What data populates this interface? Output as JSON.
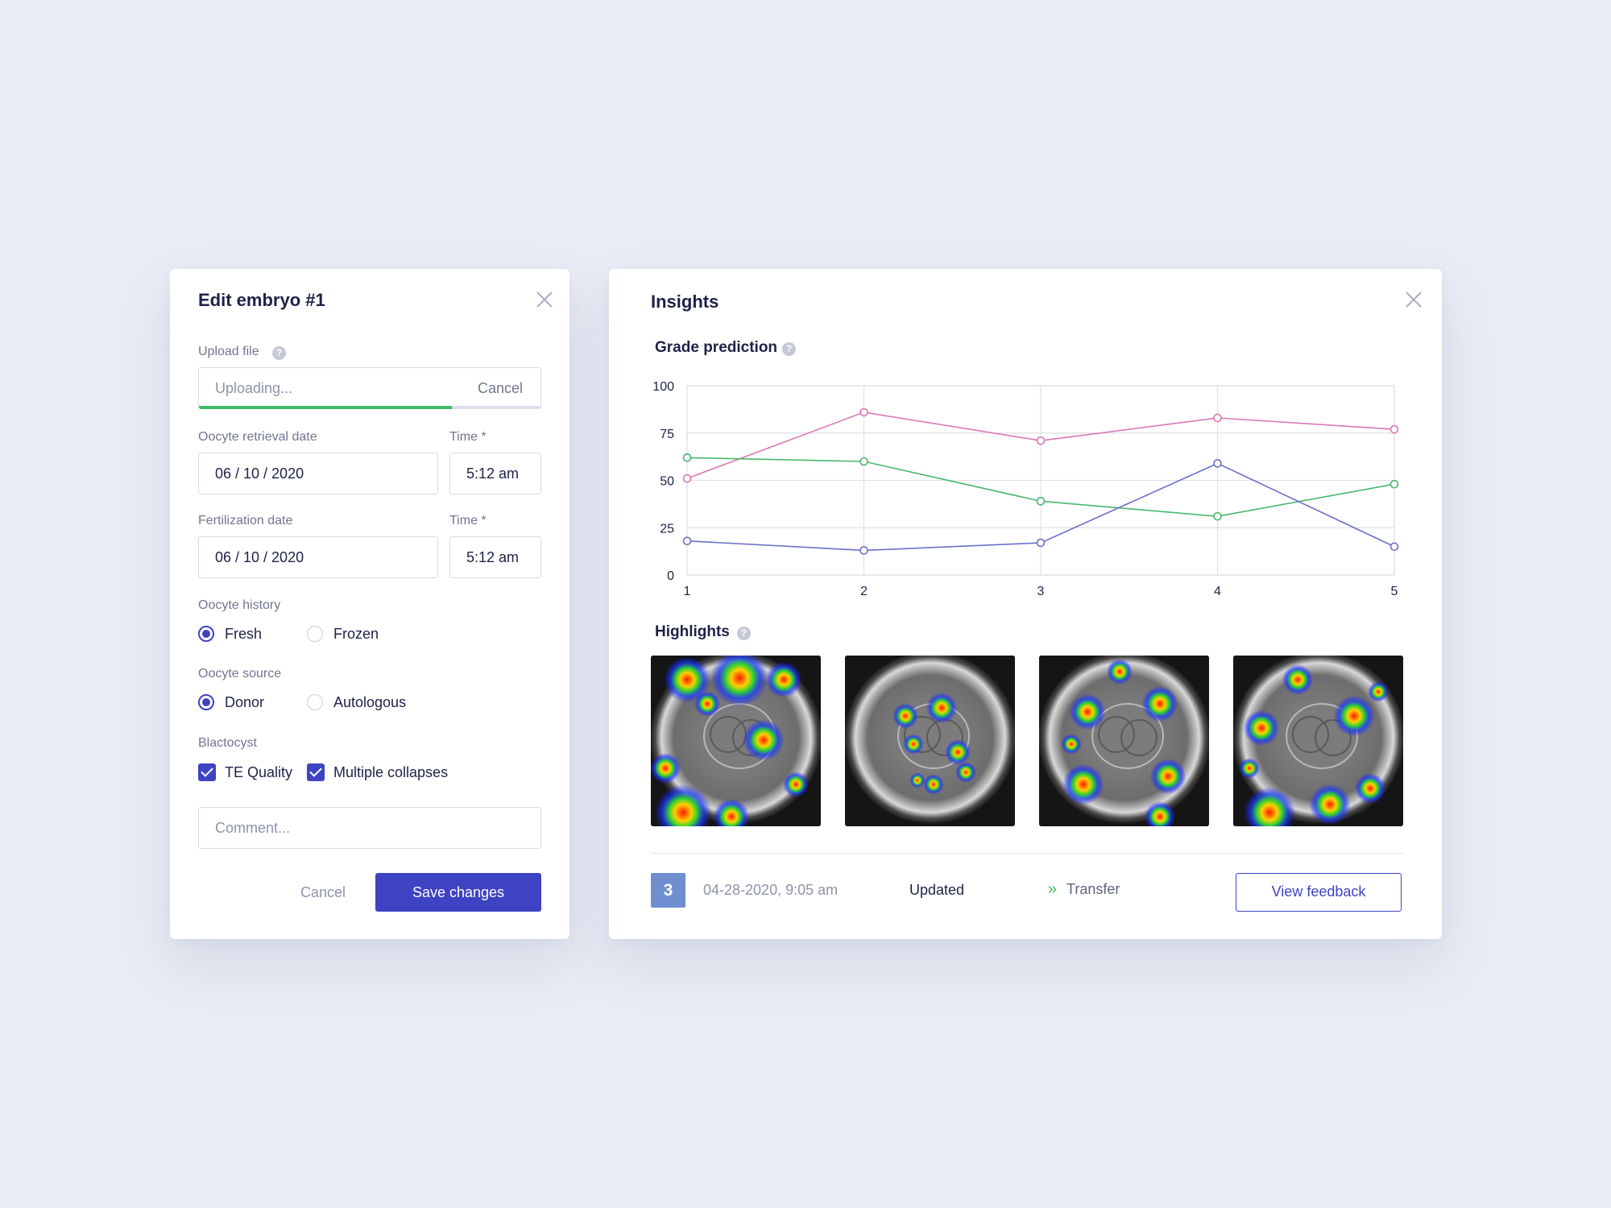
{
  "edit": {
    "title": "Edit embryo #1",
    "upload": {
      "label": "Upload file",
      "status": "Uploading...",
      "cancel_label": "Cancel",
      "progress": 0.74
    },
    "retrieval": {
      "label": "Oocyte retrieval date",
      "date": "06 / 10 / 2020",
      "time_label": "Time *",
      "time": "5:12 am"
    },
    "fertilization": {
      "label": "Fertilization date",
      "date": "06 / 10 / 2020",
      "time_label": "Time *",
      "time": "5:12 am"
    },
    "history": {
      "label": "Oocyte history",
      "options": [
        "Fresh",
        "Frozen"
      ],
      "selected": "Fresh"
    },
    "source": {
      "label": "Oocyte source",
      "options": [
        "Donor",
        "Autologous"
      ],
      "selected": "Donor"
    },
    "blastocyst": {
      "label": "Blactocyst",
      "options": [
        "TE Quality",
        "Multiple collapses"
      ],
      "checked": [
        true,
        true
      ]
    },
    "comment_placeholder": "Comment...",
    "cancel_label": "Cancel",
    "save_label": "Save changes"
  },
  "insights": {
    "title": "Insights",
    "grade_label": "Grade prediction",
    "highlights_label": "Highlights",
    "footer": {
      "badge": "3",
      "timestamp": "04-28-2020, 9:05 am",
      "status": "Updated",
      "action_icon": "double-chevron-right-icon",
      "action": "Transfer",
      "feedback_label": "View feedback"
    }
  },
  "colors": {
    "accent": "#3e43c3",
    "progress": "#3dbb66",
    "series_pink": "#d977b7",
    "series_green": "#48b86d",
    "series_blue": "#6a6fc8"
  },
  "chart_data": {
    "type": "line",
    "x": [
      1,
      2,
      3,
      4,
      5
    ],
    "xlabel": "",
    "ylabel": "",
    "ylim": [
      0,
      100
    ],
    "yticks": [
      0,
      25,
      50,
      75,
      100
    ],
    "grid": true,
    "series": [
      {
        "values": [
          51,
          86,
          71,
          83,
          77
        ],
        "color": "#d977b7"
      },
      {
        "values": [
          62,
          60,
          39,
          31,
          48
        ],
        "color": "#48b86d"
      },
      {
        "values": [
          18,
          13,
          17,
          59,
          15
        ],
        "color": "#6a6fc8"
      }
    ]
  }
}
